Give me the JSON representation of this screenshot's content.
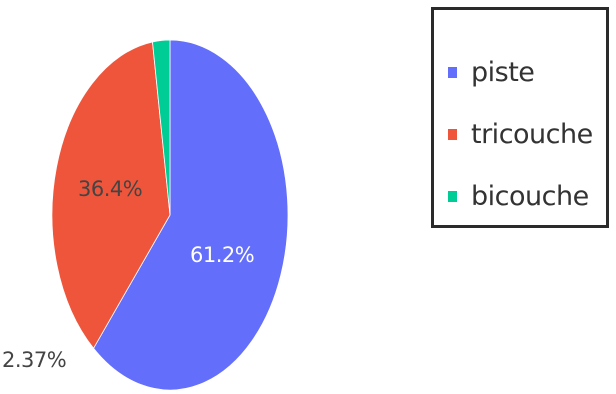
{
  "chart_data": {
    "type": "pie",
    "categories": [
      "piste",
      "tricouche",
      "bicouche"
    ],
    "values": [
      61.2,
      36.4,
      2.37
    ],
    "labels": [
      "61.2%",
      "36.4%",
      "2.37%"
    ],
    "colors": [
      "#636efa",
      "#ef553b",
      "#00cc96"
    ],
    "legend_position": "top-right"
  }
}
